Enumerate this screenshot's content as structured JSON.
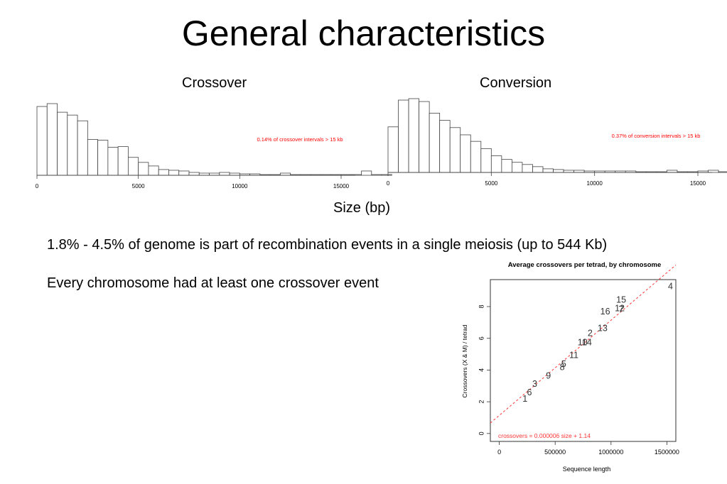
{
  "slide": {
    "title": "General characteristics",
    "shared_xlabel": "Size (bp)",
    "bullets": [
      "1.8% - 4.5% of genome is part of recombination events in a single meiosis (up to 544 Kb)",
      "Every chromosome had at least one crossover event"
    ]
  },
  "chart_data": [
    {
      "type": "bar",
      "title": "Crossover",
      "annotation": "0.14% of crossover intervals > 15 kb",
      "annotation_color": "#ff0000",
      "bin_width": 500,
      "x_ticks": [
        0,
        5000,
        10000,
        15000
      ],
      "x_tick_labels": [
        "0",
        "5000",
        "10000",
        "15000"
      ],
      "xlim": [
        0,
        15000
      ],
      "values": [
        96,
        100,
        88,
        84,
        76,
        50,
        49,
        39,
        40,
        25,
        18,
        13,
        8,
        7,
        6,
        4,
        3,
        3,
        4,
        3,
        2,
        2,
        1,
        1,
        3,
        1,
        1,
        1,
        1,
        1,
        1,
        1,
        6,
        1,
        1
      ]
    },
    {
      "type": "bar",
      "title": "Conversion",
      "annotation": "0.37% of conversion intervals > 15 kb",
      "annotation_color": "#ff0000",
      "bin_width": 500,
      "x_ticks": [
        0,
        5000,
        10000,
        15000
      ],
      "x_tick_labels": [
        "0",
        "5000",
        "10000",
        "15000"
      ],
      "xlim": [
        0,
        15000
      ],
      "values": [
        63,
        100,
        102,
        98,
        82,
        72,
        62,
        52,
        43,
        33,
        23,
        18,
        14,
        11,
        8,
        5,
        4,
        3,
        3,
        2,
        2,
        2,
        2,
        2,
        1,
        1,
        1,
        3,
        1,
        1,
        2,
        3,
        1,
        1,
        1
      ]
    },
    {
      "type": "scatter",
      "title": "Average crossovers per tetrad, by chromosome",
      "xlabel": "Sequence length",
      "ylabel": "Crossovers (X & M) / tetrad",
      "x_ticks": [
        0,
        500000,
        1000000,
        1500000
      ],
      "x_tick_labels": [
        "0",
        "500000",
        "1000000",
        "1500000"
      ],
      "y_ticks": [
        0,
        2,
        4,
        6,
        8
      ],
      "xlim": [
        -80000,
        1580000
      ],
      "ylim": [
        -0.5,
        9.7
      ],
      "fit_label": "crossovers = 0.000006 size + 1.14",
      "fit": {
        "slope": 6e-06,
        "intercept": 1.14,
        "color": "#ff3333"
      },
      "points": [
        {
          "label": "1",
          "x": 230000,
          "y": 2.15
        },
        {
          "label": "6",
          "x": 270000,
          "y": 2.55
        },
        {
          "label": "3",
          "x": 317000,
          "y": 3.1
        },
        {
          "label": "9",
          "x": 440000,
          "y": 3.6
        },
        {
          "label": "8",
          "x": 563000,
          "y": 4.15
        },
        {
          "label": "5",
          "x": 577000,
          "y": 4.35
        },
        {
          "label": "11",
          "x": 667000,
          "y": 4.9
        },
        {
          "label": "10",
          "x": 745000,
          "y": 5.7
        },
        {
          "label": "14",
          "x": 784000,
          "y": 5.7
        },
        {
          "label": "2",
          "x": 813000,
          "y": 6.3
        },
        {
          "label": "13",
          "x": 924000,
          "y": 6.6
        },
        {
          "label": "16",
          "x": 948000,
          "y": 7.65
        },
        {
          "label": "12",
          "x": 1078000,
          "y": 7.85
        },
        {
          "label": "7",
          "x": 1090000,
          "y": 7.8
        },
        {
          "label": "15",
          "x": 1091000,
          "y": 8.4
        },
        {
          "label": "4",
          "x": 1532000,
          "y": 9.25
        }
      ]
    }
  ]
}
